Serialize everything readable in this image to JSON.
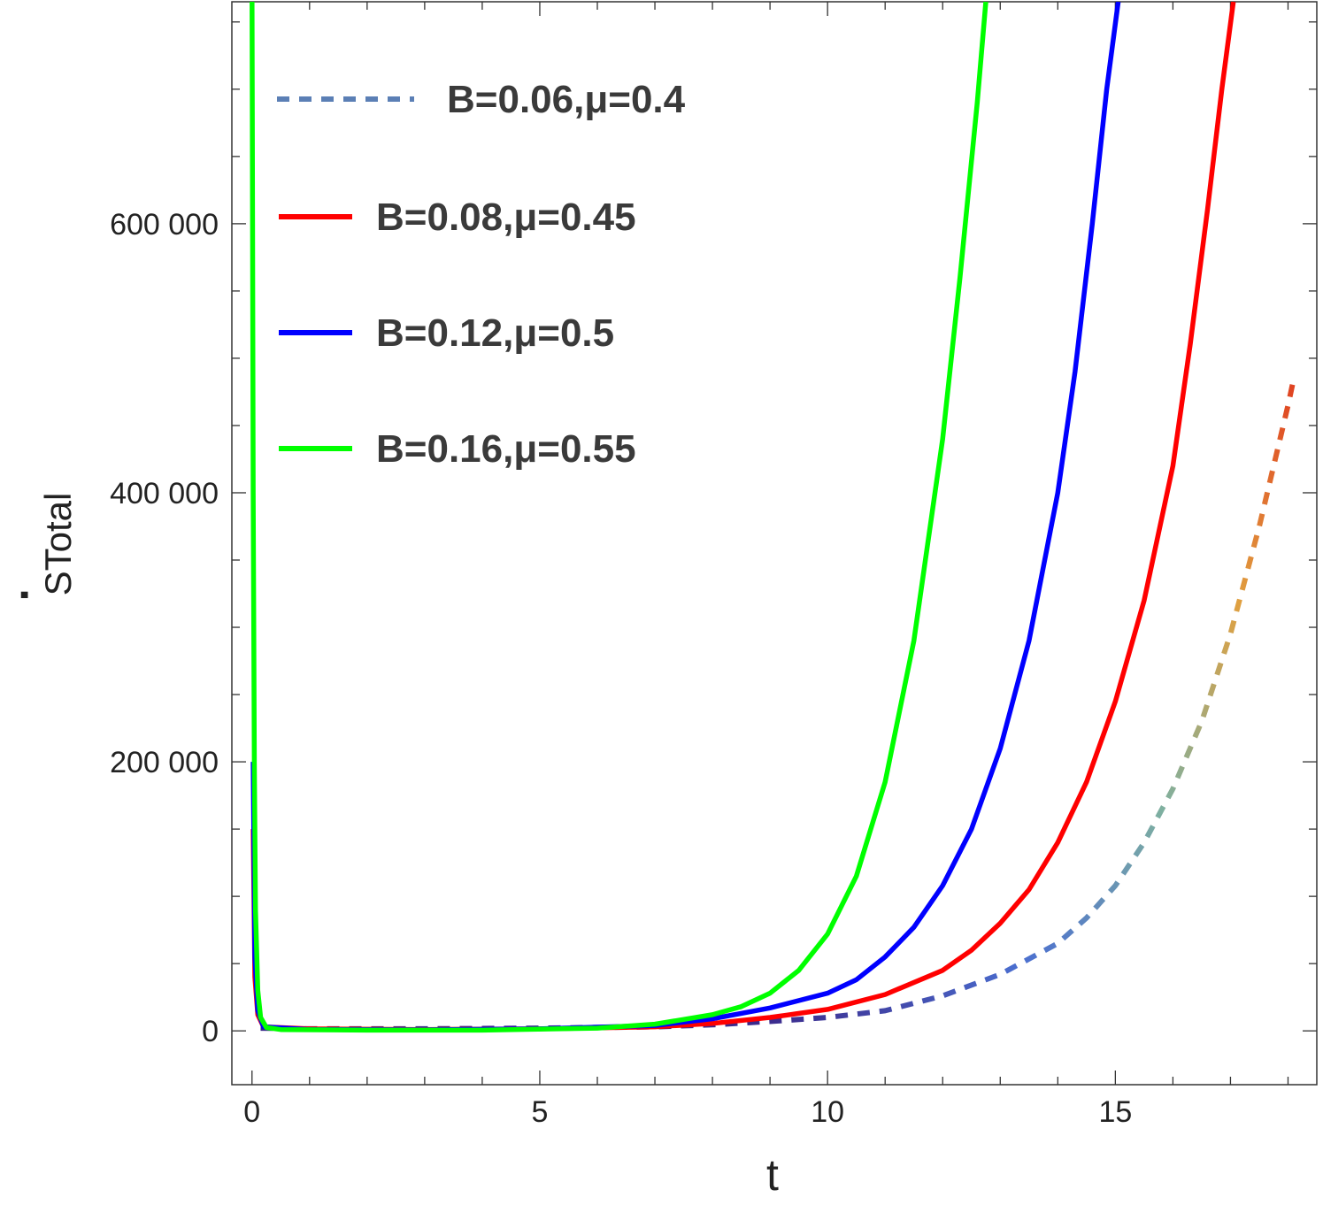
{
  "chart_data": {
    "type": "line",
    "xlabel": "t",
    "ylabel_dot": "·",
    "ylabel_main": "STotal",
    "xlim": [
      -0.35,
      18.5
    ],
    "ylim": [
      -40000,
      765000
    ],
    "xticks": [
      0,
      5,
      10,
      15
    ],
    "xtick_labels": [
      "0",
      "5",
      "10",
      "15"
    ],
    "x_minor_step": 1,
    "yticks": [
      0,
      200000,
      400000,
      600000
    ],
    "ytick_labels": [
      "0",
      "200 000",
      "400 000",
      "600 000"
    ],
    "y_minor_step": 50000,
    "grid": false,
    "legend_position": "top-left",
    "series": [
      {
        "name": "B=0.06,μ=0.4",
        "color": "#5b7fb5",
        "dashed": true,
        "gradient": [
          "#3b2a8c",
          "#4b6fd0",
          "#7fb0a0",
          "#e0a040",
          "#e04020"
        ],
        "points": [
          [
            0.15,
            2000
          ],
          [
            1,
            1500
          ],
          [
            3,
            1500
          ],
          [
            5,
            2000
          ],
          [
            7,
            3000
          ],
          [
            8,
            4500
          ],
          [
            9,
            7000
          ],
          [
            10,
            10000
          ],
          [
            11,
            15000
          ],
          [
            12,
            26000
          ],
          [
            13,
            42000
          ],
          [
            14,
            65000
          ],
          [
            14.5,
            84000
          ],
          [
            15,
            108000
          ],
          [
            15.5,
            140000
          ],
          [
            16,
            180000
          ],
          [
            16.5,
            230000
          ],
          [
            17,
            295000
          ],
          [
            17.5,
            375000
          ],
          [
            18,
            465000
          ],
          [
            18.1,
            485000
          ]
        ]
      },
      {
        "name": "B=0.08,μ=0.45",
        "color": "#ff0000",
        "dashed": false,
        "points": [
          [
            0.02,
            150000
          ],
          [
            0.05,
            40000
          ],
          [
            0.1,
            12000
          ],
          [
            0.2,
            3000
          ],
          [
            1,
            1500
          ],
          [
            3,
            1000
          ],
          [
            5,
            1500
          ],
          [
            7,
            3000
          ],
          [
            8,
            5500
          ],
          [
            9,
            10000
          ],
          [
            10,
            16000
          ],
          [
            11,
            27000
          ],
          [
            12,
            45000
          ],
          [
            12.5,
            60000
          ],
          [
            13,
            80000
          ],
          [
            13.5,
            105000
          ],
          [
            14,
            140000
          ],
          [
            14.5,
            185000
          ],
          [
            15,
            245000
          ],
          [
            15.5,
            320000
          ],
          [
            16,
            420000
          ],
          [
            16.3,
            510000
          ],
          [
            16.6,
            610000
          ],
          [
            16.85,
            700000
          ],
          [
            17.05,
            765000
          ]
        ]
      },
      {
        "name": "B=0.12,μ=0.5",
        "color": "#0000ff",
        "dashed": false,
        "points": [
          [
            0.02,
            200000
          ],
          [
            0.05,
            55000
          ],
          [
            0.1,
            15000
          ],
          [
            0.2,
            3000
          ],
          [
            1,
            1000
          ],
          [
            3,
            800
          ],
          [
            5,
            1500
          ],
          [
            7,
            4000
          ],
          [
            8,
            9000
          ],
          [
            9,
            17000
          ],
          [
            10,
            28000
          ],
          [
            10.5,
            38000
          ],
          [
            11,
            55000
          ],
          [
            11.5,
            77000
          ],
          [
            12,
            108000
          ],
          [
            12.5,
            150000
          ],
          [
            13,
            210000
          ],
          [
            13.5,
            290000
          ],
          [
            14,
            400000
          ],
          [
            14.3,
            490000
          ],
          [
            14.6,
            600000
          ],
          [
            14.85,
            700000
          ],
          [
            15.05,
            765000
          ]
        ]
      },
      {
        "name": "B=0.16,μ=0.55",
        "color": "#00ff00",
        "dashed": false,
        "points": [
          [
            0.0,
            765000
          ],
          [
            0.01,
            600000
          ],
          [
            0.02,
            400000
          ],
          [
            0.04,
            200000
          ],
          [
            0.06,
            90000
          ],
          [
            0.1,
            30000
          ],
          [
            0.15,
            10000
          ],
          [
            0.25,
            2500
          ],
          [
            0.5,
            1000
          ],
          [
            2,
            500
          ],
          [
            4,
            500
          ],
          [
            6,
            2000
          ],
          [
            7,
            5000
          ],
          [
            8,
            12000
          ],
          [
            8.5,
            18000
          ],
          [
            9,
            28000
          ],
          [
            9.5,
            45000
          ],
          [
            10,
            72000
          ],
          [
            10.5,
            115000
          ],
          [
            11,
            185000
          ],
          [
            11.5,
            290000
          ],
          [
            12,
            440000
          ],
          [
            12.3,
            560000
          ],
          [
            12.6,
            690000
          ],
          [
            12.75,
            765000
          ]
        ]
      }
    ]
  }
}
